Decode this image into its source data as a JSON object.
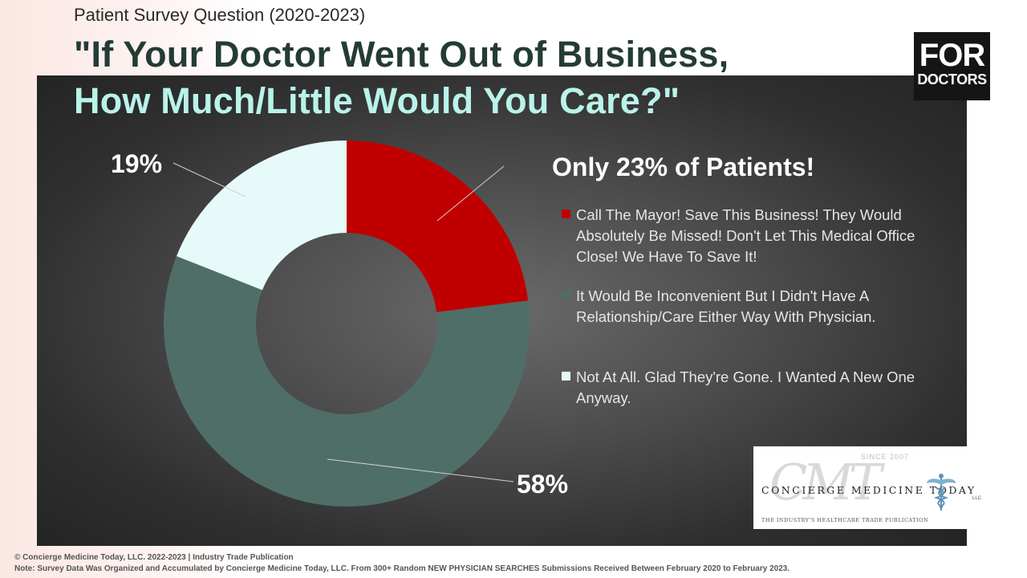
{
  "header": {
    "subtitle": "Patient Survey Question (2020-2023)",
    "title_line1": "\"If Your Doctor Went Out of Business,",
    "title_line2": "How Much/Little Would You Care?\""
  },
  "logo_for_doctors": {
    "line1": "FOR",
    "line2": "DOCTORS"
  },
  "callout": "Only 23% of Patients!",
  "chart_data": {
    "type": "pie",
    "donut": true,
    "categories": [
      "Call The Mayor! Save This Business! They Would Absolutely Be Missed! Don't Let This Medical Office Close! We Have To Save It!",
      "It Would Be Inconvenient But I Didn't Have A Relationship/Care Either Way With Physician.",
      "Not At All. Glad They're Gone. I Wanted A New One Anyway."
    ],
    "values": [
      23,
      58,
      19
    ],
    "data_labels": [
      "",
      "58%",
      "19%"
    ],
    "colors": [
      "#c00000",
      "#4f6e67",
      "#e6fbf9"
    ],
    "legend_position": "right"
  },
  "concierge_logo": {
    "since": "SINCE 2007",
    "name": "CONCIERGE MEDICINE TODAY",
    "llc": "LLC",
    "tagline": "THE INDUSTRY'S HEALTHCARE TRADE PUBLICATION"
  },
  "footer": {
    "line1": "© Concierge Medicine Today, LLC. 2022-2023 | Industry Trade Publication",
    "line2": "Note: Survey Data Was Organized and Accumulated by Concierge Medicine Today, LLC. From 300+ Random NEW PHYSICIAN SEARCHES Submissions Received Between February 2020 to February 2023."
  }
}
